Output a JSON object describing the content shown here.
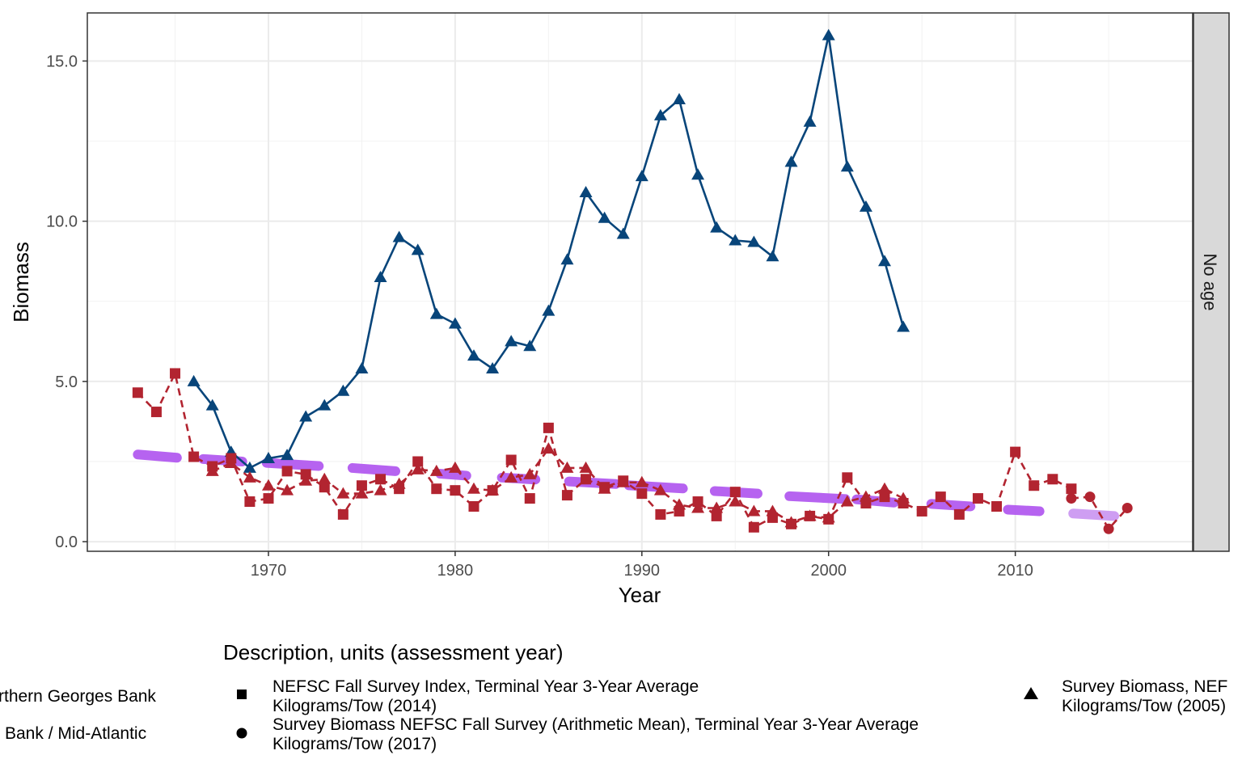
{
  "chart_data": {
    "type": "line",
    "xlabel": "Year",
    "ylabel": "Biomass",
    "xlim": [
      1960.3,
      2019.5
    ],
    "ylim": [
      -0.3,
      16.5
    ],
    "x_ticks": [
      1970,
      1980,
      1990,
      2000,
      2010
    ],
    "x_tick_labels": [
      "1970",
      "1980",
      "1990",
      "2000",
      "2010"
    ],
    "y_ticks": [
      0,
      5,
      10,
      15
    ],
    "y_tick_labels": [
      "0.0",
      "5.0",
      "10.0",
      "15.0"
    ],
    "grid": true,
    "facet_label": "No age",
    "legend": {
      "position": "bottom",
      "title": "Description, units (assessment year)",
      "color_entries": [
        "rthern Georges Bank",
        "Bank / Mid-Atlantic"
      ],
      "shape_entries": [
        {
          "shape": "square",
          "line1": "NEFSC Fall Survey Index, Terminal Year 3-Year Average",
          "line2": "Kilograms/Tow (2014)"
        },
        {
          "shape": "circle",
          "line1": "Survey Biomass NEFSC Fall Survey (Arithmetic Mean), Terminal Year 3-Year Average",
          "line2": "Kilograms/Tow (2017)"
        },
        {
          "shape": "triangle",
          "line1": "Survey Biomass, NEF",
          "line2": "Kilograms/Tow (2005)"
        }
      ]
    },
    "series": [
      {
        "color": "#08457a",
        "shape": "triangle",
        "dash": "solid",
        "x": [
          1966,
          1967,
          1968,
          1969,
          1970,
          1971,
          1972,
          1973,
          1974,
          1975,
          1976,
          1977,
          1978,
          1979,
          1980,
          1981,
          1982,
          1983,
          1984,
          1985,
          1986,
          1987,
          1988,
          1989,
          1990,
          1991,
          1992,
          1993,
          1994,
          1995,
          1996,
          1997,
          1998,
          1999,
          2000,
          2001,
          2002,
          2003,
          2004
        ],
        "y": [
          5.0,
          4.25,
          2.8,
          2.3,
          2.6,
          2.7,
          3.9,
          4.25,
          4.7,
          5.4,
          8.25,
          9.5,
          9.1,
          7.1,
          6.8,
          5.8,
          5.4,
          6.25,
          6.1,
          7.2,
          8.8,
          10.9,
          10.1,
          9.6,
          11.4,
          13.3,
          13.8,
          11.45,
          9.8,
          9.4,
          9.35,
          8.9,
          11.85,
          13.1,
          15.8,
          11.7,
          10.45,
          8.75,
          6.7
        ]
      },
      {
        "color": "#b22430",
        "shape": "square",
        "dash": "dashed",
        "x": [
          1963,
          1964,
          1965,
          1966,
          1967,
          1968,
          1969,
          1970,
          1971,
          1972,
          1973,
          1974,
          1975,
          1976,
          1977,
          1978,
          1979,
          1980,
          1981,
          1982,
          1983,
          1984,
          1985,
          1986,
          1987,
          1988,
          1989,
          1990,
          1991,
          1992,
          1993,
          1994,
          1995,
          1996,
          1997,
          1998,
          1999,
          2000,
          2001,
          2002,
          2003,
          2004,
          2005,
          2006,
          2007,
          2008,
          2009,
          2010,
          2011,
          2012,
          2013
        ],
        "y": [
          4.65,
          4.05,
          5.25,
          2.65,
          2.35,
          2.6,
          1.25,
          1.35,
          2.2,
          2.1,
          1.7,
          0.85,
          1.75,
          1.95,
          1.65,
          2.5,
          1.65,
          1.6,
          1.1,
          1.6,
          2.55,
          1.35,
          3.55,
          1.45,
          1.95,
          1.7,
          1.9,
          1.5,
          0.85,
          0.95,
          1.25,
          0.8,
          1.55,
          0.45,
          0.75,
          0.55,
          0.8,
          0.7,
          2.0,
          1.2,
          1.4,
          1.2,
          0.95,
          1.4,
          0.85,
          1.35,
          1.1,
          2.8,
          1.75,
          1.95,
          1.65
        ]
      },
      {
        "color": "#b22430",
        "shape": "triangle",
        "dash": "dashed",
        "x": [
          1967,
          1968,
          1969,
          1970,
          1971,
          1972,
          1973,
          1974,
          1975,
          1976,
          1977,
          1978,
          1979,
          1980,
          1981,
          1982,
          1983,
          1984,
          1985,
          1986,
          1987,
          1988,
          1989,
          1990,
          1991,
          1992,
          1993,
          1994,
          1995,
          1996,
          1997,
          1998,
          1999,
          2000,
          2001,
          2002,
          2003,
          2004
        ],
        "y": [
          2.2,
          2.45,
          2.0,
          1.75,
          1.6,
          1.9,
          1.95,
          1.5,
          1.5,
          1.6,
          1.8,
          2.25,
          2.2,
          2.3,
          1.65,
          1.6,
          2.0,
          2.1,
          2.9,
          2.3,
          2.3,
          1.65,
          1.85,
          1.85,
          1.6,
          1.15,
          1.05,
          1.05,
          1.25,
          0.95,
          0.95,
          0.6,
          0.8,
          0.75,
          1.25,
          1.4,
          1.65,
          1.35
        ]
      },
      {
        "color": "#b22430",
        "shape": "circle",
        "dash": "dashed",
        "x": [
          2013,
          2014,
          2015,
          2016
        ],
        "y": [
          1.35,
          1.4,
          0.4,
          1.05
        ]
      }
    ],
    "three_year_average_segments": [
      {
        "x": [
          1963,
          1965.1
        ],
        "y": [
          2.72,
          2.62
        ],
        "color": "#b35bf0"
      },
      {
        "x": [
          1966.5,
          1968.6
        ],
        "y": [
          2.58,
          2.5
        ],
        "color": "#b35bf0"
      },
      {
        "x": [
          1969.9,
          1972.7
        ],
        "y": [
          2.46,
          2.36
        ],
        "color": "#b35bf0"
      },
      {
        "x": [
          1974.5,
          1976.8
        ],
        "y": [
          2.3,
          2.2
        ],
        "color": "#b35bf0"
      },
      {
        "x": [
          1979.2,
          1980.6
        ],
        "y": [
          2.12,
          2.06
        ],
        "color": "#b35bf0"
      },
      {
        "x": [
          1982.5,
          1984.3
        ],
        "y": [
          2.0,
          1.94
        ],
        "color": "#b35bf0"
      },
      {
        "x": [
          1986.1,
          1988.6
        ],
        "y": [
          1.88,
          1.8
        ],
        "color": "#b35bf0"
      },
      {
        "x": [
          1989.3,
          1992.2
        ],
        "y": [
          1.76,
          1.66
        ],
        "color": "#b35bf0"
      },
      {
        "x": [
          1993.9,
          1996.2
        ],
        "y": [
          1.58,
          1.5
        ],
        "color": "#b35bf0"
      },
      {
        "x": [
          1997.9,
          2000.9
        ],
        "y": [
          1.42,
          1.33
        ],
        "color": "#b35bf0"
      },
      {
        "x": [
          2001.5,
          2003.5
        ],
        "y": [
          1.32,
          1.22
        ],
        "color": "#b35bf0"
      },
      {
        "x": [
          2005.5,
          2007.6
        ],
        "y": [
          1.18,
          1.1
        ],
        "color": "#b35bf0"
      },
      {
        "x": [
          2009.6,
          2011.3
        ],
        "y": [
          1.0,
          0.95
        ],
        "color": "#b35bf0"
      },
      {
        "x": [
          2013.1,
          2015.3
        ],
        "y": [
          0.88,
          0.8
        ],
        "color": "#cc99f2"
      }
    ]
  }
}
